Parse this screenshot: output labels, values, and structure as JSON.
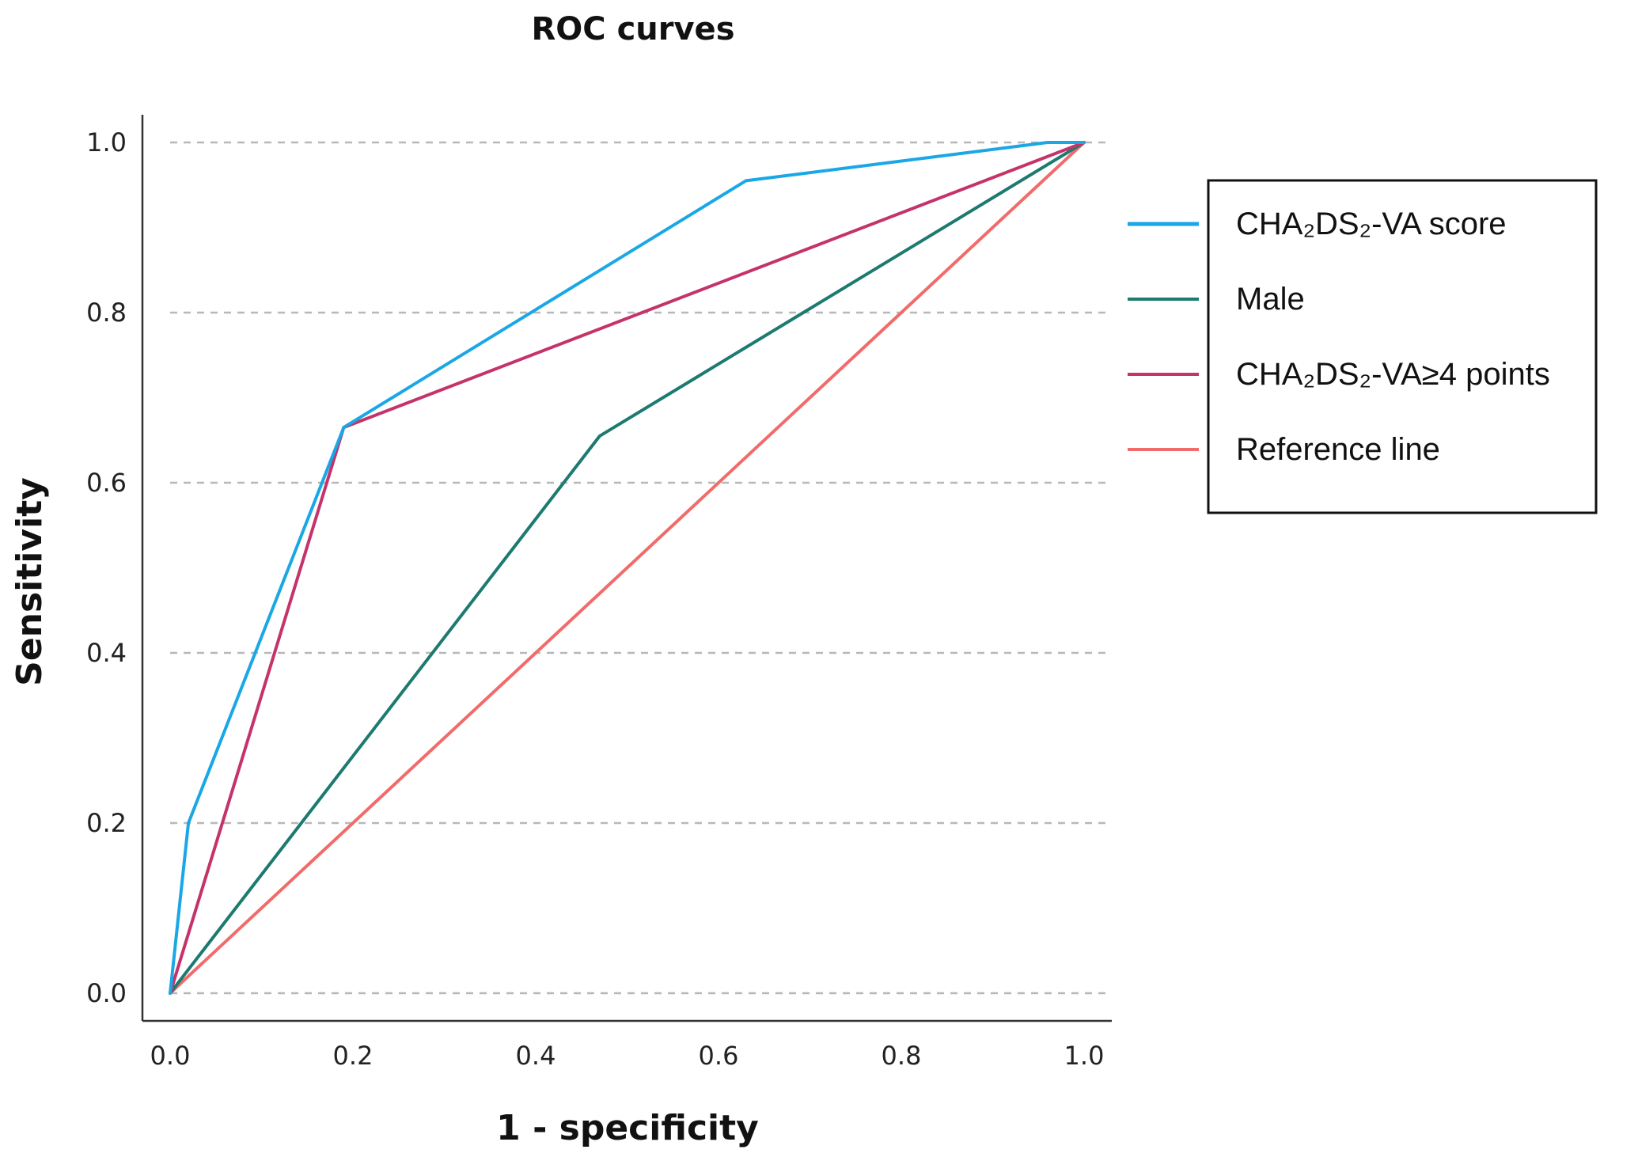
{
  "chart_data": {
    "type": "line",
    "title": "ROC curves",
    "xlabel": "1 - specificity",
    "ylabel": "Sensitivity",
    "xlim": [
      0,
      1
    ],
    "ylim": [
      0,
      1
    ],
    "xticks": [
      0.0,
      0.2,
      0.4,
      0.6,
      0.8,
      1.0
    ],
    "yticks": [
      0.0,
      0.2,
      0.4,
      0.6,
      0.8,
      1.0
    ],
    "xtick_labels": [
      "0.0",
      "0.2",
      "0.4",
      "0.6",
      "0.8",
      "1.0"
    ],
    "ytick_labels": [
      "0.0",
      "0.2",
      "0.4",
      "0.6",
      "0.8",
      "1.0"
    ],
    "grid": "horizontal dashed",
    "legend_position": "right",
    "series": [
      {
        "name": "CHA₂DS₂-VA score",
        "color": "#1aa7e6",
        "x": [
          0.0,
          0.02,
          0.19,
          0.63,
          0.96,
          1.0
        ],
        "y": [
          0.0,
          0.2,
          0.665,
          0.955,
          1.0,
          1.0
        ]
      },
      {
        "name": "Male",
        "color": "#1d7a70",
        "x": [
          0.0,
          0.47,
          1.0
        ],
        "y": [
          0.0,
          0.655,
          1.0
        ]
      },
      {
        "name": "CHA₂DS₂-VA≥4 points",
        "color": "#c4336a",
        "x": [
          0.0,
          0.19,
          1.0
        ],
        "y": [
          0.0,
          0.665,
          1.0
        ]
      },
      {
        "name": "Reference line",
        "color": "#f26b6b",
        "x": [
          0.0,
          1.0
        ],
        "y": [
          0.0,
          1.0
        ]
      }
    ]
  }
}
